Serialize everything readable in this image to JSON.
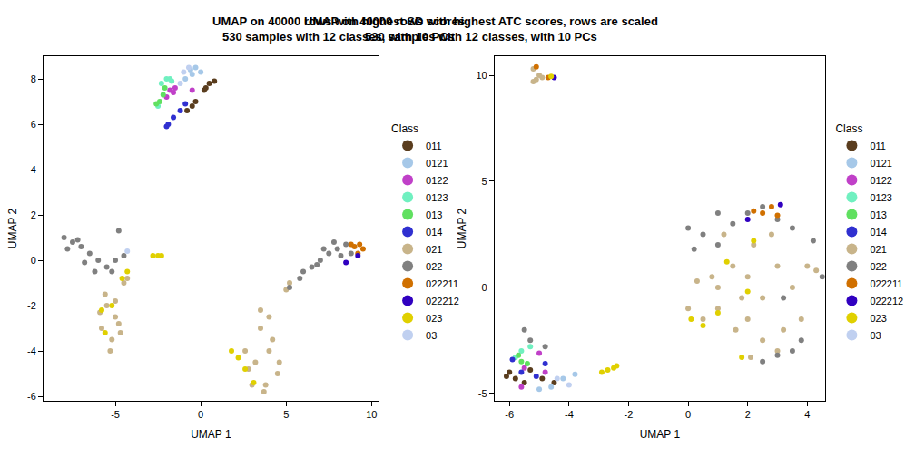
{
  "chart_data": [
    {
      "type": "scatter",
      "title": "UMAP on 40000 rows with highest SD scores",
      "subtitle": "530 samples with 12 classes, with 10 PCs",
      "x_label": "UMAP 1",
      "y_label": "UMAP 2",
      "legend_title": "Class",
      "legend": "right",
      "grid": false,
      "marker": "circle",
      "xlim": [
        -9.2,
        10.4
      ],
      "ylim": [
        -6.2,
        9
      ],
      "xticks": [
        -5,
        0,
        5,
        10
      ],
      "yticks": [
        -6,
        -4,
        -2,
        0,
        2,
        4,
        6,
        8
      ],
      "series": [
        {
          "name": "011",
          "color": "#5a3d1e",
          "x": [
            0.2,
            0.5,
            0.8,
            -0.5,
            -0.8,
            -0.3,
            0.3
          ],
          "y": [
            7.5,
            7.8,
            7.9,
            6.8,
            6.6,
            7.0,
            7.6
          ]
        },
        {
          "name": "0121",
          "color": "#a6c8e8",
          "x": [
            -0.6,
            -0.3,
            -0.5,
            0.0,
            -0.9
          ],
          "y": [
            8.4,
            8.5,
            8.2,
            8.3,
            8.0
          ]
        },
        {
          "name": "0122",
          "color": "#c040c8",
          "x": [
            -1.8,
            -1.5,
            -1.6,
            -0.5,
            -2.0
          ],
          "y": [
            7.5,
            7.6,
            7.4,
            7.5,
            7.2
          ]
        },
        {
          "name": "0123",
          "color": "#70f0c0",
          "x": [
            -2.3,
            -2.0,
            -1.7,
            -2.5,
            -1.8
          ],
          "y": [
            7.8,
            8.0,
            7.9,
            6.8,
            8.0
          ]
        },
        {
          "name": "013",
          "color": "#60e060",
          "x": [
            -2.4,
            -2.2,
            -2.6,
            -2.1
          ],
          "y": [
            7.0,
            7.3,
            6.9,
            7.6
          ]
        },
        {
          "name": "014",
          "color": "#3030d0",
          "x": [
            -1.9,
            -1.6,
            -1.2,
            -2.0,
            -0.9
          ],
          "y": [
            6.0,
            6.3,
            6.6,
            5.9,
            6.9
          ]
        },
        {
          "name": "021",
          "color": "#c8b48a",
          "x": [
            -5.5,
            -5.0,
            -5.8,
            -4.7,
            -5.2,
            -5.6,
            -4.5,
            -5.0,
            -4.8,
            -5.3,
            -4.3,
            -5.9,
            3.5,
            4.0,
            3.2,
            4.5,
            3.8,
            2.8,
            3.5,
            4.2,
            3.0,
            4.6,
            3.7,
            2.6,
            4.0,
            5.0,
            5.2
          ],
          "y": [
            -2.0,
            -2.5,
            -3.0,
            -3.2,
            -3.5,
            -1.5,
            -1.0,
            -1.8,
            -2.8,
            -4.0,
            -0.8,
            -2.3,
            -3.0,
            -4.0,
            -4.5,
            -5.0,
            -5.5,
            -4.8,
            -2.2,
            -3.5,
            -5.5,
            -4.5,
            -5.8,
            -4.0,
            -2.5,
            -1.3,
            -1.0
          ]
        },
        {
          "name": "022",
          "color": "#808080",
          "x": [
            -8.0,
            -7.5,
            -7.0,
            -6.5,
            -6.0,
            -5.5,
            -5.0,
            -4.5,
            -6.8,
            -7.8,
            -5.2,
            -4.8,
            -6.2,
            -7.2,
            5.8,
            6.5,
            7.0,
            7.5,
            8.0,
            8.5,
            6.0,
            7.2,
            8.2,
            5.2,
            6.8,
            7.8,
            8.8
          ],
          "y": [
            1.0,
            0.8,
            0.6,
            0.3,
            0.0,
            -0.3,
            0.0,
            0.2,
            -0.1,
            0.5,
            -0.5,
            1.3,
            -0.5,
            0.9,
            -0.8,
            -0.3,
            0.0,
            0.3,
            0.5,
            0.7,
            -0.5,
            0.5,
            0.2,
            -1.2,
            -0.2,
            0.8,
            0.3
          ]
        },
        {
          "name": "022211",
          "color": "#d07000",
          "x": [
            9.0,
            9.3,
            9.5,
            9.2,
            8.8
          ],
          "y": [
            0.6,
            0.7,
            0.5,
            0.3,
            0.7
          ]
        },
        {
          "name": "022212",
          "color": "#3000c0",
          "x": [
            9.2,
            8.5
          ],
          "y": [
            0.2,
            -0.1
          ]
        },
        {
          "name": "023",
          "color": "#e0d000",
          "x": [
            -2.5,
            -2.8,
            -2.3,
            -4.3,
            -4.6,
            -5.8,
            -5.6,
            -5.2,
            1.8,
            2.2,
            2.6,
            3.1
          ],
          "y": [
            0.2,
            0.2,
            0.2,
            -0.5,
            -0.8,
            -2.2,
            -3.2,
            -2.0,
            -4.0,
            -4.3,
            -4.8,
            -5.4
          ]
        },
        {
          "name": "03",
          "color": "#c0d0f0",
          "x": [
            -1.0,
            -0.7,
            -1.2,
            -4.3
          ],
          "y": [
            8.3,
            8.5,
            7.8,
            0.4
          ]
        }
      ]
    },
    {
      "type": "scatter",
      "title": "UMAP on 40000 rows with highest ATC scores, rows are scaled",
      "subtitle": "530 samples with 12 classes, with 10 PCs",
      "x_label": "UMAP 1",
      "y_label": "UMAP 2",
      "legend_title": "Class",
      "legend": "right",
      "grid": false,
      "marker": "circle",
      "xlim": [
        -6.5,
        4.6
      ],
      "ylim": [
        -5.35,
        10.9
      ],
      "xticks": [
        -6,
        -4,
        -2,
        0,
        2,
        4
      ],
      "yticks": [
        -5,
        0,
        5,
        10
      ],
      "series": [
        {
          "name": "011",
          "color": "#5a3d1e",
          "x": [
            -6.0,
            -5.8,
            -5.5,
            -4.9,
            -5.3,
            -6.1,
            -4.5
          ],
          "y": [
            -4.0,
            -4.3,
            -4.5,
            -4.3,
            -3.9,
            -4.2,
            -4.5
          ]
        },
        {
          "name": "0121",
          "color": "#a6c8e8",
          "x": [
            -4.6,
            -4.2,
            -5.0,
            -3.8
          ],
          "y": [
            -4.7,
            -4.3,
            -4.8,
            -4.1
          ]
        },
        {
          "name": "0122",
          "color": "#c040c8",
          "x": [
            -5.5,
            -5.0,
            -4.8,
            -5.6
          ],
          "y": [
            -3.8,
            -3.1,
            -4.0,
            -4.7
          ]
        },
        {
          "name": "0123",
          "color": "#70f0c0",
          "x": [
            -5.6,
            -5.8,
            -5.3
          ],
          "y": [
            -3.0,
            -3.3,
            -2.8
          ]
        },
        {
          "name": "013",
          "color": "#60e060",
          "x": [
            -5.6,
            -5.4,
            -5.7
          ],
          "y": [
            -3.5,
            -3.6,
            -3.2
          ]
        },
        {
          "name": "014",
          "color": "#3030d0",
          "x": [
            -5.9,
            -5.6,
            -4.8,
            -5.1
          ],
          "y": [
            -3.4,
            -4.0,
            -3.6,
            -4.2
          ]
        },
        {
          "name": "021",
          "color": "#c8b48a",
          "x": [
            -5.2,
            -5.1,
            -4.9,
            -5.0,
            -5.2,
            0.0,
            0.5,
            1.0,
            1.5,
            2.0,
            2.5,
            3.0,
            3.5,
            4.0,
            4.3,
            1.0,
            2.0,
            2.5,
            3.0,
            2.2,
            1.8,
            3.8,
            0.8,
            1.2,
            2.8,
            2.1,
            3.2,
            0.3,
            1.6
          ],
          "y": [
            10.3,
            9.8,
            9.9,
            10.0,
            9.7,
            -1.0,
            -1.5,
            0.0,
            1.0,
            0.5,
            -0.5,
            1.0,
            0.0,
            1.0,
            0.8,
            -1.0,
            -1.5,
            -2.5,
            -3.0,
            2.0,
            -0.5,
            -1.5,
            0.5,
            2.5,
            2.5,
            -3.3,
            -2.0,
            0.3,
            -2.0
          ]
        },
        {
          "name": "022",
          "color": "#808080",
          "x": [
            -5.5,
            -5.3,
            -4.8,
            0.0,
            0.5,
            1.0,
            1.5,
            2.0,
            2.5,
            3.0,
            3.5,
            4.2,
            3.0,
            3.5,
            2.5,
            3.8,
            3.2,
            1.0,
            4.5,
            0.2
          ],
          "y": [
            -2.0,
            -2.5,
            -2.8,
            2.8,
            2.5,
            2.0,
            3.0,
            3.5,
            3.8,
            3.2,
            2.8,
            2.2,
            -3.2,
            -3.0,
            -3.5,
            -2.5,
            -0.5,
            3.5,
            0.5,
            1.8
          ]
        },
        {
          "name": "022211",
          "color": "#d07000",
          "x": [
            -5.1,
            -4.7,
            2.5,
            2.8,
            3.0,
            2.2
          ],
          "y": [
            10.4,
            9.9,
            3.5,
            3.8,
            3.4,
            3.6
          ]
        },
        {
          "name": "022212",
          "color": "#3000c0",
          "x": [
            -4.5,
            3.1,
            2.0
          ],
          "y": [
            9.9,
            3.9,
            3.2
          ]
        },
        {
          "name": "023",
          "color": "#e0d000",
          "x": [
            -4.6,
            -2.7,
            -2.5,
            -2.9,
            -2.4,
            0.1,
            0.5,
            1.0,
            2.0,
            1.3,
            2.2,
            1.8
          ],
          "y": [
            9.95,
            -3.9,
            -3.8,
            -4.0,
            -3.7,
            -1.5,
            -1.8,
            -1.2,
            -0.2,
            1.2,
            2.2,
            -3.3
          ]
        },
        {
          "name": "03",
          "color": "#c0d0f0",
          "x": [
            -4.4,
            -4.0
          ],
          "y": [
            -4.3,
            -4.6
          ]
        }
      ]
    }
  ]
}
